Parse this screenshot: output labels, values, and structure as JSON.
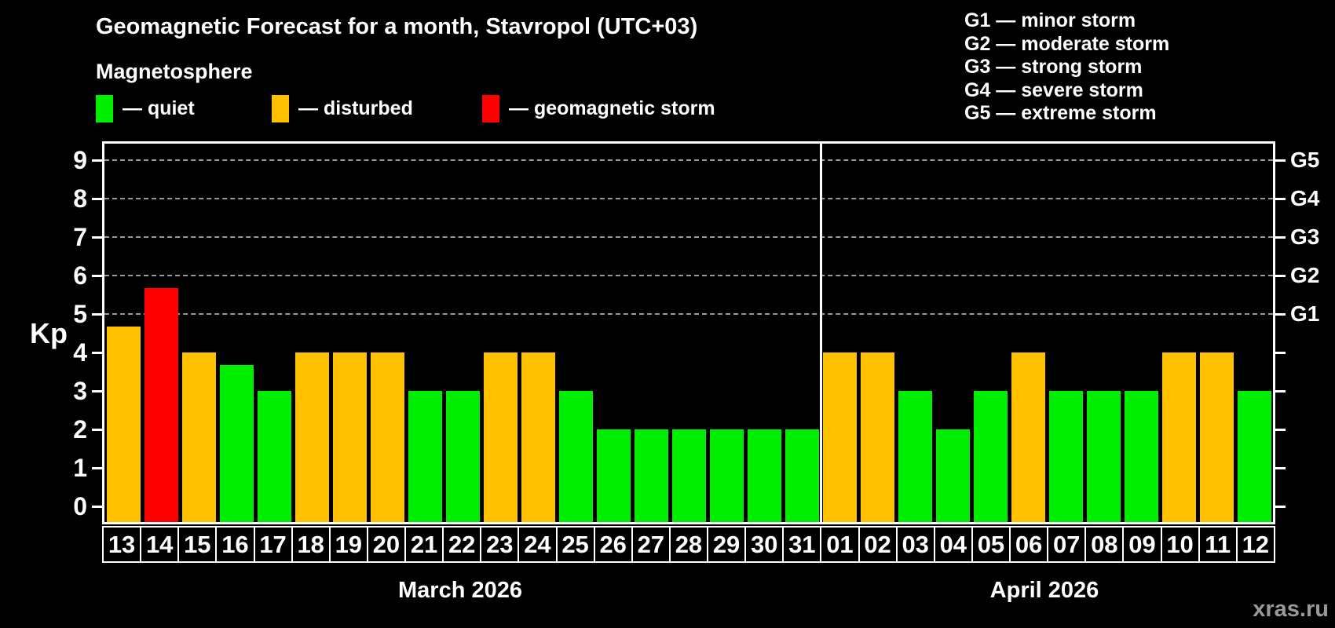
{
  "header": {
    "title": "Geomagnetic Forecast for a month, Stavropol (UTC+03)",
    "subtitle": "Magnetosphere",
    "legend": [
      {
        "state": "quiet",
        "label": "— quiet",
        "color": "#00EE00",
        "x": 122
      },
      {
        "state": "disturbed",
        "label": "— disturbed",
        "color": "#FFC000",
        "x": 346
      },
      {
        "state": "storm",
        "label": "— geomagnetic storm",
        "color": "#FF0000",
        "x": 614
      }
    ],
    "g_legend": [
      "G1 — minor storm",
      "G2 — moderate storm",
      "G3 — strong storm",
      "G4 — severe storm",
      "G5 — extreme storm"
    ]
  },
  "chart_data": {
    "type": "bar",
    "ylabel": "Kp",
    "ylim": [
      -0.4,
      9.45
    ],
    "yticks": [
      0,
      1,
      2,
      3,
      4,
      5,
      6,
      7,
      8,
      9
    ],
    "gridlines": [
      5,
      6,
      7,
      8,
      9
    ],
    "right_axis": [
      {
        "value": 5,
        "label": "G1"
      },
      {
        "value": 6,
        "label": "G2"
      },
      {
        "value": 7,
        "label": "G3"
      },
      {
        "value": 8,
        "label": "G4"
      },
      {
        "value": 9,
        "label": "G5"
      }
    ],
    "months": [
      {
        "label": "March 2026",
        "days": 19
      },
      {
        "label": "April 2026",
        "days": 12
      }
    ],
    "categories": [
      "13",
      "14",
      "15",
      "16",
      "17",
      "18",
      "19",
      "20",
      "21",
      "22",
      "23",
      "24",
      "25",
      "26",
      "27",
      "28",
      "29",
      "30",
      "31",
      "01",
      "02",
      "03",
      "04",
      "05",
      "06",
      "07",
      "08",
      "09",
      "10",
      "11",
      "12"
    ],
    "values": [
      4.67,
      5.67,
      4,
      3.67,
      3,
      4,
      4,
      4,
      3,
      3,
      4,
      4,
      3,
      2,
      2,
      2,
      2,
      2,
      2,
      4,
      4,
      3,
      2,
      3,
      4,
      3,
      3,
      3,
      4,
      4,
      3
    ],
    "states": [
      "disturbed",
      "storm",
      "disturbed",
      "quiet",
      "quiet",
      "disturbed",
      "disturbed",
      "disturbed",
      "quiet",
      "quiet",
      "disturbed",
      "disturbed",
      "quiet",
      "quiet",
      "quiet",
      "quiet",
      "quiet",
      "quiet",
      "quiet",
      "disturbed",
      "disturbed",
      "quiet",
      "quiet",
      "quiet",
      "disturbed",
      "quiet",
      "quiet",
      "quiet",
      "disturbed",
      "disturbed",
      "quiet"
    ],
    "state_colors": {
      "quiet": "#00EE00",
      "disturbed": "#FFC000",
      "storm": "#FF0000"
    }
  },
  "watermark": "xras.ru"
}
